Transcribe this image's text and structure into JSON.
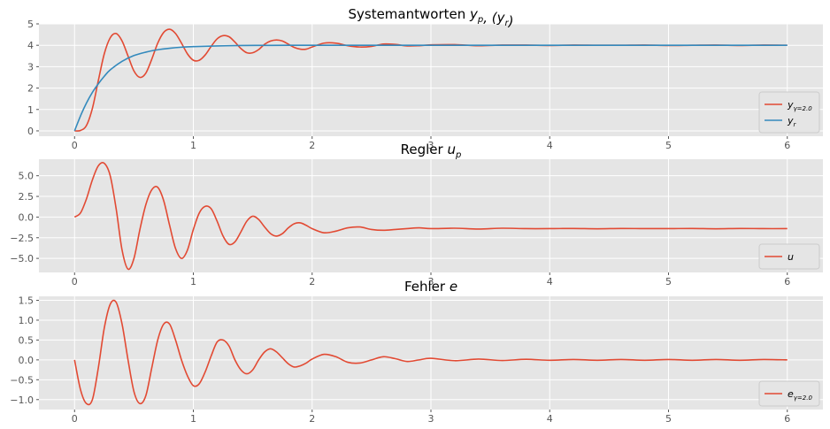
{
  "colors": {
    "axes_bg": "#E5E5E5",
    "grid": "#FFFFFF",
    "red": "#E24A33",
    "blue": "#348ABD",
    "tick_text": "#555555"
  },
  "chart_data": [
    {
      "type": "line",
      "title": "Systemantworten y_p, (y_r)",
      "title_main": "Systemantworten ",
      "title_math": "y_p, (y_r)",
      "xlim": [
        -0.3,
        6.3
      ],
      "ylim": [
        -0.25,
        5.0
      ],
      "xticks": [
        0,
        1,
        2,
        3,
        4,
        5,
        6
      ],
      "yticks": [
        0,
        1,
        2,
        3,
        4,
        5
      ],
      "ytick_labels": [
        "0",
        "1",
        "2",
        "3",
        "4",
        "5"
      ],
      "legend_placement": "lower-right",
      "series": [
        {
          "name": "y_{γ=2.0}",
          "color": "#E24A33",
          "x": [
            0,
            0.05,
            0.1,
            0.15,
            0.2,
            0.25,
            0.3,
            0.35,
            0.4,
            0.45,
            0.5,
            0.55,
            0.6,
            0.65,
            0.7,
            0.75,
            0.8,
            0.85,
            0.9,
            0.95,
            1.0,
            1.05,
            1.1,
            1.15,
            1.2,
            1.25,
            1.3,
            1.35,
            1.4,
            1.45,
            1.5,
            1.55,
            1.6,
            1.65,
            1.7,
            1.75,
            1.8,
            1.85,
            1.9,
            1.95,
            2.0,
            2.1,
            2.2,
            2.3,
            2.4,
            2.5,
            2.6,
            2.7,
            2.8,
            2.9,
            3.0,
            3.2,
            3.4,
            3.6,
            3.8,
            4.0,
            4.2,
            4.4,
            4.6,
            4.8,
            5.0,
            5.2,
            5.4,
            5.6,
            5.8,
            6.0
          ],
          "y": [
            0.0,
            0.02,
            0.25,
            1.05,
            2.35,
            3.6,
            4.35,
            4.55,
            4.2,
            3.5,
            2.8,
            2.5,
            2.7,
            3.35,
            4.1,
            4.6,
            4.75,
            4.55,
            4.1,
            3.6,
            3.3,
            3.3,
            3.55,
            3.95,
            4.3,
            4.45,
            4.4,
            4.15,
            3.85,
            3.65,
            3.65,
            3.8,
            4.05,
            4.2,
            4.25,
            4.2,
            4.05,
            3.9,
            3.82,
            3.82,
            3.92,
            4.1,
            4.1,
            3.98,
            3.92,
            3.95,
            4.06,
            4.04,
            3.97,
            3.98,
            4.02,
            4.03,
            3.98,
            4.01,
            4.01,
            3.99,
            4.01,
            4.0,
            4.0,
            4.01,
            3.99,
            4.0,
            4.01,
            3.99,
            4.01,
            4.0
          ]
        },
        {
          "name": "y_r",
          "color": "#348ABD",
          "x": [
            0,
            0.05,
            0.1,
            0.15,
            0.2,
            0.25,
            0.3,
            0.4,
            0.5,
            0.6,
            0.7,
            0.8,
            0.9,
            1.0,
            1.2,
            1.4,
            1.6,
            1.8,
            2.0,
            2.5,
            3.0,
            4.0,
            5.0,
            6.0
          ],
          "y": [
            0.0,
            0.7,
            1.3,
            1.8,
            2.2,
            2.55,
            2.85,
            3.25,
            3.52,
            3.68,
            3.79,
            3.86,
            3.91,
            3.94,
            3.97,
            3.99,
            3.995,
            4.0,
            4.0,
            4.0,
            4.0,
            4.0,
            4.0,
            4.0
          ]
        }
      ]
    },
    {
      "type": "line",
      "title": "Regler u_p",
      "title_main": "Regler ",
      "title_math": "u_p",
      "xlim": [
        -0.3,
        6.3
      ],
      "ylim": [
        -6.7,
        7.0
      ],
      "xticks": [
        0,
        1,
        2,
        3,
        4,
        5,
        6
      ],
      "yticks": [
        -5.0,
        -2.5,
        0.0,
        2.5,
        5.0
      ],
      "ytick_labels": [
        "−5.0",
        "−2.5",
        "0.0",
        "2.5",
        "5.0"
      ],
      "legend_placement": "lower-right",
      "series": [
        {
          "name": "u",
          "color": "#E24A33",
          "x": [
            0,
            0.05,
            0.1,
            0.15,
            0.2,
            0.25,
            0.3,
            0.35,
            0.4,
            0.45,
            0.5,
            0.55,
            0.6,
            0.65,
            0.7,
            0.75,
            0.8,
            0.85,
            0.9,
            0.95,
            1.0,
            1.05,
            1.1,
            1.15,
            1.2,
            1.25,
            1.3,
            1.35,
            1.4,
            1.45,
            1.5,
            1.55,
            1.6,
            1.65,
            1.7,
            1.75,
            1.8,
            1.85,
            1.9,
            1.95,
            2.0,
            2.1,
            2.2,
            2.3,
            2.4,
            2.5,
            2.6,
            2.7,
            2.8,
            2.9,
            3.0,
            3.2,
            3.4,
            3.6,
            3.8,
            4.0,
            4.2,
            4.4,
            4.6,
            4.8,
            5.0,
            5.2,
            5.4,
            5.6,
            5.8,
            6.0
          ],
          "y": [
            0.0,
            0.5,
            2.2,
            4.5,
            6.2,
            6.5,
            5.0,
            1.0,
            -4.0,
            -6.3,
            -5.0,
            -1.5,
            1.5,
            3.3,
            3.6,
            2.0,
            -1.0,
            -3.8,
            -5.0,
            -4.0,
            -1.5,
            0.5,
            1.3,
            1.0,
            -0.5,
            -2.3,
            -3.3,
            -3.0,
            -1.8,
            -0.5,
            0.1,
            -0.3,
            -1.2,
            -2.0,
            -2.3,
            -2.0,
            -1.3,
            -0.8,
            -0.7,
            -1.0,
            -1.4,
            -1.9,
            -1.7,
            -1.3,
            -1.2,
            -1.5,
            -1.6,
            -1.5,
            -1.4,
            -1.3,
            -1.4,
            -1.35,
            -1.45,
            -1.35,
            -1.4,
            -1.4,
            -1.38,
            -1.42,
            -1.38,
            -1.4,
            -1.4,
            -1.38,
            -1.42,
            -1.38,
            -1.4,
            -1.4
          ]
        }
      ]
    },
    {
      "type": "line",
      "title": "Fehler e",
      "title_main": "Fehler ",
      "title_math": "e",
      "xlim": [
        -0.3,
        6.3
      ],
      "ylim": [
        -1.25,
        1.6
      ],
      "xticks": [
        0,
        1,
        2,
        3,
        4,
        5,
        6
      ],
      "yticks": [
        -1.0,
        -0.5,
        0.0,
        0.5,
        1.0,
        1.5
      ],
      "ytick_labels": [
        "−1.0",
        "−0.5",
        "0.0",
        "0.5",
        "1.0",
        "1.5"
      ],
      "legend_placement": "lower-right",
      "series": [
        {
          "name": "e_{γ=2.0}",
          "color": "#E24A33",
          "x": [
            0,
            0.05,
            0.1,
            0.15,
            0.2,
            0.25,
            0.3,
            0.35,
            0.4,
            0.45,
            0.5,
            0.55,
            0.6,
            0.65,
            0.7,
            0.75,
            0.8,
            0.85,
            0.9,
            0.95,
            1.0,
            1.05,
            1.1,
            1.15,
            1.2,
            1.25,
            1.3,
            1.35,
            1.4,
            1.45,
            1.5,
            1.55,
            1.6,
            1.65,
            1.7,
            1.75,
            1.8,
            1.85,
            1.9,
            1.95,
            2.0,
            2.1,
            2.2,
            2.3,
            2.4,
            2.5,
            2.6,
            2.7,
            2.8,
            2.9,
            3.0,
            3.2,
            3.4,
            3.6,
            3.8,
            4.0,
            4.2,
            4.4,
            4.6,
            4.8,
            5.0,
            5.2,
            5.4,
            5.6,
            5.8,
            6.0
          ],
          "y": [
            0.0,
            -0.75,
            -1.1,
            -1.0,
            -0.2,
            0.8,
            1.4,
            1.45,
            0.9,
            0.0,
            -0.8,
            -1.1,
            -0.9,
            -0.2,
            0.5,
            0.9,
            0.9,
            0.5,
            0.0,
            -0.4,
            -0.65,
            -0.6,
            -0.3,
            0.1,
            0.45,
            0.5,
            0.35,
            0.0,
            -0.25,
            -0.35,
            -0.25,
            0.0,
            0.2,
            0.28,
            0.2,
            0.05,
            -0.1,
            -0.18,
            -0.15,
            -0.08,
            0.02,
            0.14,
            0.08,
            -0.06,
            -0.08,
            0.0,
            0.08,
            0.03,
            -0.04,
            0.0,
            0.04,
            -0.02,
            0.02,
            -0.015,
            0.015,
            -0.01,
            0.01,
            -0.01,
            0.01,
            -0.01,
            0.01,
            -0.01,
            0.01,
            -0.01,
            0.01,
            0.0
          ]
        }
      ]
    }
  ]
}
